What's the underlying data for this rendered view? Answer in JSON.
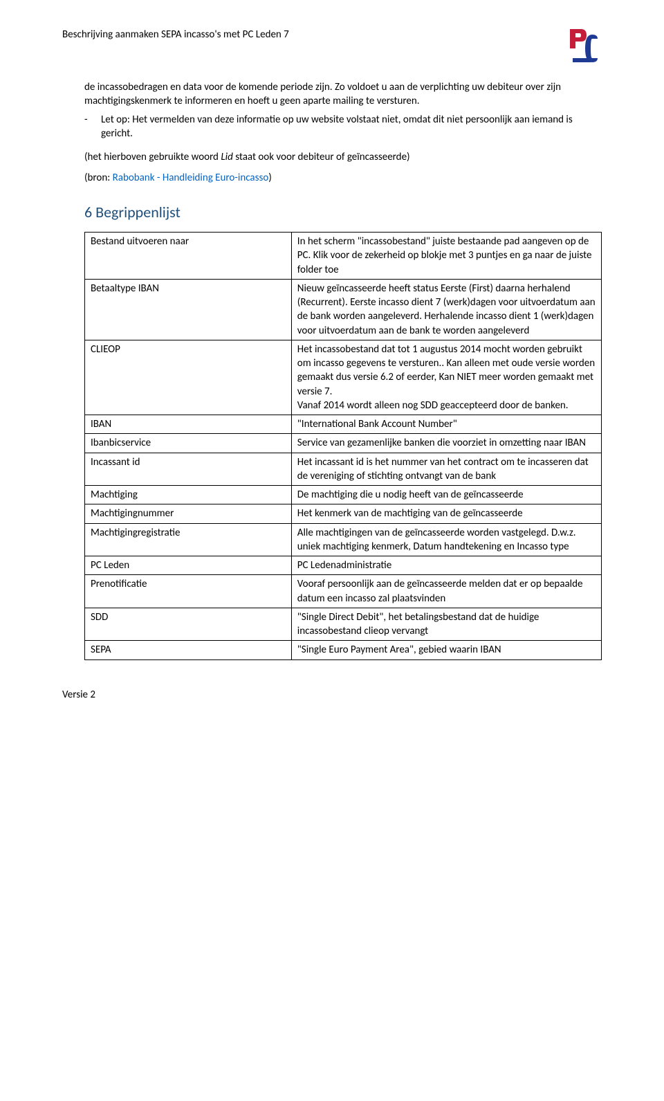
{
  "header": {
    "title": "Beschrijving aanmaken SEPA incasso's met PC Leden 7"
  },
  "logo": {
    "colors": {
      "red": "#C51E3A",
      "blue": "#1F3A93"
    }
  },
  "intro": {
    "continued_text": "de incassobedragen en data voor de komende periode zijn. Zo voldoet u aan de verplichting uw debiteur over zijn machtigingskenmerk te informeren en hoeft u geen aparte mailing te versturen.",
    "bullet_text": "Let op: Het vermelden van deze informatie op uw website volstaat niet, omdat dit niet persoonlijk aan iemand is gericht.",
    "italic_note_pre": "(het hierboven gebruikte woord ",
    "italic_note_word": "Lid",
    "italic_note_post": " staat ook voor  debiteur of  geïncasseerde)",
    "bron_prefix": "(bron: ",
    "bron_link": "Rabobank - Handleiding Euro-incasso",
    "bron_suffix": ")"
  },
  "section": {
    "number": "6",
    "title": "Begrippenlijst"
  },
  "glossary": {
    "rows": [
      {
        "term": "Bestand uitvoeren naar",
        "def": "In het scherm \"incassobestand\" juiste bestaande pad aangeven op de PC. Klik voor de zekerheid op blokje met 3 puntjes en ga naar de juiste folder toe"
      },
      {
        "term": "Betaaltype IBAN",
        "def": "Nieuw geïncasseerde heeft status Eerste (First) daarna herhalend (Recurrent). Eerste incasso dient 7 (werk)dagen voor uitvoerdatum aan de bank worden aangeleverd. Herhalende incasso dient 1 (werk)dagen voor uitvoerdatum aan de bank te worden aangeleverd"
      },
      {
        "term": "CLIEOP",
        "def": "Het incassobestand dat tot 1 augustus 2014 mocht worden gebruikt om incasso gegevens te versturen.. Kan alleen met oude versie worden gemaakt dus versie 6.2 of eerder, Kan NIET meer worden gemaakt met versie 7.\nVanaf 2014 wordt alleen nog SDD geaccepteerd door de banken."
      },
      {
        "term": "IBAN",
        "def": "\"International Bank Account Number\""
      },
      {
        "term": "Ibanbicservice",
        "def": "Service van gezamenlijke banken die voorziet in omzetting naar IBAN"
      },
      {
        "term": "Incassant id",
        "def": "Het incassant id is het nummer van het contract om te incasseren dat de vereniging of stichting ontvangt van de bank"
      },
      {
        "term": "Machtiging",
        "def": "De machtiging die u nodig heeft van de geïncasseerde"
      },
      {
        "term": "Machtigingnummer",
        "def": "Het kenmerk van de machtiging van de geïncasseerde"
      },
      {
        "term": "Machtigingregistratie",
        "def": "Alle machtigingen van de geïncasseerde worden vastgelegd. D.w.z. uniek machtiging kenmerk, Datum handtekening en Incasso type"
      },
      {
        "term": "PC Leden",
        "def": "PC Ledenadministratie"
      },
      {
        "term": "Prenotificatie",
        "def": "Vooraf persoonlijk aan de geïncasseerde melden dat er op bepaalde datum een incasso zal plaatsvinden"
      },
      {
        "term": "SDD",
        "def": "\"Single Direct Debit\", het betalingsbestand dat de huidige incassobestand clieop vervangt"
      },
      {
        "term": "SEPA",
        "def": "\"Single Euro Payment Area\", gebied waarin IBAN"
      }
    ]
  },
  "footer": {
    "version": "Versie 2"
  },
  "styling": {
    "text_color": "#000000",
    "link_color": "#0563c1",
    "heading_color": "#1f4e79",
    "border_color": "#000000",
    "background": "#ffffff",
    "body_font_size": 15,
    "heading_font_size": 22,
    "font_family": "Calibri"
  }
}
